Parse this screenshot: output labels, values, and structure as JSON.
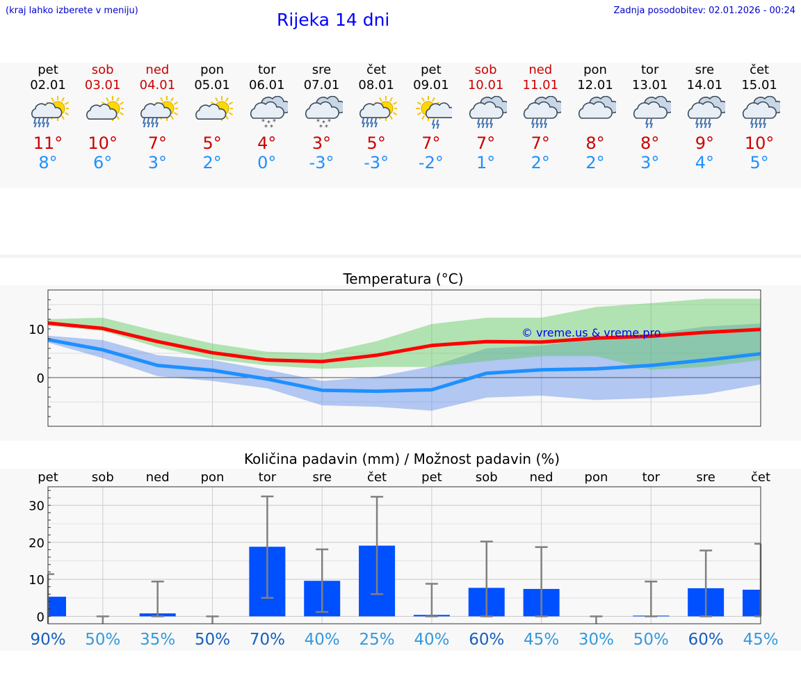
{
  "header": {
    "hint": "(kraj lahko izberete v meniju)",
    "title": "Rijeka 14 dni",
    "updated": "Zadnja posodobitev: 02.01.2026 - 00:24"
  },
  "colors": {
    "weekend": "#cc0000",
    "max": "#ff0000",
    "min": "#1e90ff",
    "bar": "#0050ff"
  },
  "days": [
    {
      "name": "pet",
      "date": "02.01",
      "weekend": false,
      "icon": "sun-cloud-rain-icon",
      "tmax": "11°",
      "tmin": "8°"
    },
    {
      "name": "sob",
      "date": "03.01",
      "weekend": true,
      "icon": "sun-cloud-icon",
      "tmax": "10°",
      "tmin": "6°"
    },
    {
      "name": "ned",
      "date": "04.01",
      "weekend": true,
      "icon": "sun-cloud-rain-icon",
      "tmax": "7°",
      "tmin": "3°"
    },
    {
      "name": "pon",
      "date": "05.01",
      "weekend": false,
      "icon": "sun-cloud-icon",
      "tmax": "5°",
      "tmin": "2°"
    },
    {
      "name": "tor",
      "date": "06.01",
      "weekend": false,
      "icon": "cloud-snow-icon",
      "tmax": "4°",
      "tmin": "0°"
    },
    {
      "name": "sre",
      "date": "07.01",
      "weekend": false,
      "icon": "cloud-snow-icon",
      "tmax": "3°",
      "tmin": "-3°"
    },
    {
      "name": "čet",
      "date": "08.01",
      "weekend": false,
      "icon": "sun-cloud-rain-icon",
      "tmax": "5°",
      "tmin": "-3°"
    },
    {
      "name": "pet",
      "date": "09.01",
      "weekend": false,
      "icon": "sun-cloud-light-rain-icon",
      "tmax": "7°",
      "tmin": "-2°"
    },
    {
      "name": "sob",
      "date": "10.01",
      "weekend": true,
      "icon": "cloud-rain-icon",
      "tmax": "7°",
      "tmin": "1°"
    },
    {
      "name": "ned",
      "date": "11.01",
      "weekend": true,
      "icon": "cloud-rain-icon",
      "tmax": "7°",
      "tmin": "2°"
    },
    {
      "name": "pon",
      "date": "12.01",
      "weekend": false,
      "icon": "cloud-icon",
      "tmax": "8°",
      "tmin": "2°"
    },
    {
      "name": "tor",
      "date": "13.01",
      "weekend": false,
      "icon": "cloud-light-rain-icon",
      "tmax": "8°",
      "tmin": "3°"
    },
    {
      "name": "sre",
      "date": "14.01",
      "weekend": false,
      "icon": "cloud-rain-icon",
      "tmax": "9°",
      "tmin": "4°"
    },
    {
      "name": "čet",
      "date": "15.01",
      "weekend": false,
      "icon": "cloud-rain-icon",
      "tmax": "10°",
      "tmin": "5°"
    }
  ],
  "chart_data": [
    {
      "type": "line",
      "title": "Temperatura (°C)",
      "watermark": "© vreme.us & vreme.pro",
      "ylim": [
        -10,
        18
      ],
      "yticks": [
        "10",
        "0"
      ],
      "ytick_values": [
        10,
        0
      ],
      "grid": true,
      "series": [
        {
          "name": "max",
          "values": [
            11.2,
            10.1,
            7.4,
            5.1,
            3.6,
            3.3,
            4.6,
            6.6,
            7.4,
            7.3,
            8.1,
            8.5,
            9.3,
            9.9
          ]
        },
        {
          "name": "min",
          "values": [
            7.8,
            5.7,
            2.5,
            1.5,
            -0.3,
            -2.6,
            -2.8,
            -2.5,
            0.9,
            1.6,
            1.8,
            2.5,
            3.6,
            4.9
          ]
        }
      ],
      "bands": [
        {
          "name": "max-range",
          "low": [
            10.7,
            9.6,
            6.2,
            3.8,
            2.5,
            1.8,
            2.2,
            2.2,
            3.4,
            4.4,
            4.4,
            1.6,
            2.2,
            3.6
          ],
          "high": [
            12.0,
            12.3,
            9.5,
            7.0,
            5.3,
            5.0,
            7.5,
            11.0,
            12.3,
            12.3,
            14.5,
            15.3,
            16.2,
            16.2
          ]
        },
        {
          "name": "min-range",
          "low": [
            7.2,
            4.0,
            0.3,
            -0.7,
            -2.2,
            -5.7,
            -6.0,
            -6.8,
            -4.1,
            -3.7,
            -4.6,
            -4.2,
            -3.4,
            -1.4
          ],
          "high": [
            8.6,
            7.7,
            4.6,
            3.6,
            1.6,
            -0.7,
            0.2,
            2.3,
            6.0,
            6.6,
            8.0,
            9.0,
            10.5,
            11.1
          ]
        }
      ]
    },
    {
      "type": "bar",
      "title": "Količina padavin (mm) / Možnost padavin (%)",
      "categories": [
        "pet",
        "sob",
        "ned",
        "pon",
        "tor",
        "sre",
        "čet",
        "pet",
        "sob",
        "ned",
        "pon",
        "tor",
        "sre",
        "čet"
      ],
      "ylim": [
        -2,
        35
      ],
      "yticks": [
        "30",
        "20",
        "10",
        "0"
      ],
      "ytick_values": [
        30,
        20,
        10,
        0
      ],
      "values": [
        5.3,
        0.0,
        0.8,
        0.0,
        18.8,
        9.6,
        19.1,
        0.4,
        7.7,
        7.4,
        0.0,
        0.2,
        7.6,
        7.2
      ],
      "err_low": [
        null,
        null,
        0.0,
        null,
        5.0,
        1.2,
        6.0,
        0.0,
        0.0,
        0.0,
        null,
        0.0,
        0.0,
        0.0
      ],
      "err_high": [
        11.4,
        0.0,
        9.4,
        0.0,
        32.4,
        18.1,
        32.3,
        8.8,
        20.2,
        18.7,
        0.0,
        9.4,
        17.8,
        19.6
      ],
      "chance": [
        "90%",
        "50%",
        "35%",
        "50%",
        "70%",
        "40%",
        "25%",
        "40%",
        "60%",
        "45%",
        "30%",
        "50%",
        "60%",
        "45%"
      ],
      "chance_colors": [
        "#1560bd",
        "#3399dd",
        "#3399dd",
        "#1560bd",
        "#1560bd",
        "#3399dd",
        "#3399dd",
        "#3399dd",
        "#1560bd",
        "#3399dd",
        "#3399dd",
        "#3399dd",
        "#1560bd",
        "#3399dd"
      ]
    }
  ]
}
